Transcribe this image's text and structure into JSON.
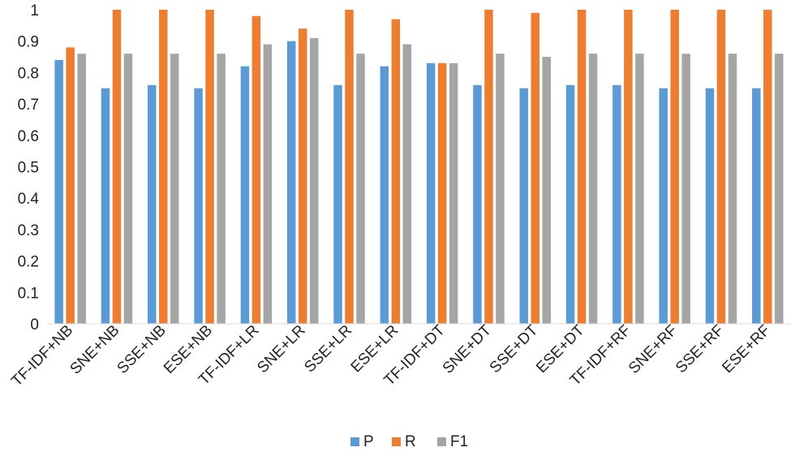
{
  "chart_data": {
    "type": "bar",
    "title": "",
    "xlabel": "",
    "ylabel": "",
    "ylim": [
      0,
      1
    ],
    "yticks": [
      "0",
      "0.1",
      "0.2",
      "0.3",
      "0.4",
      "0.5",
      "0.6",
      "0.7",
      "0.8",
      "0.9",
      "1"
    ],
    "grid": false,
    "legend_position": "bottom",
    "categories": [
      "TF-IDF+NB",
      "SNE+NB",
      "SSE+NB",
      "ESE+NB",
      "TF-IDF+LR",
      "SNE+LR",
      "SSE+LR",
      "ESE+LR",
      "TF-IDF+DT",
      "SNE+DT",
      "SSE+DT",
      "ESE+DT",
      "TF-IDF+RF",
      "SNE+RF",
      "SSE+RF",
      "ESE+RF"
    ],
    "series": [
      {
        "name": "P",
        "color": "#5B9BD5",
        "values": [
          0.84,
          0.75,
          0.76,
          0.75,
          0.82,
          0.9,
          0.76,
          0.82,
          0.83,
          0.76,
          0.75,
          0.76,
          0.76,
          0.75,
          0.75,
          0.75
        ]
      },
      {
        "name": "R",
        "color": "#ED7D31",
        "values": [
          0.88,
          1.0,
          1.0,
          1.0,
          0.98,
          0.94,
          1.0,
          0.97,
          0.83,
          1.0,
          0.99,
          1.0,
          1.0,
          1.0,
          1.0,
          1.0
        ]
      },
      {
        "name": "F1",
        "color": "#A5A5A5",
        "values": [
          0.86,
          0.86,
          0.86,
          0.86,
          0.89,
          0.91,
          0.86,
          0.89,
          0.83,
          0.86,
          0.85,
          0.86,
          0.86,
          0.86,
          0.86,
          0.86
        ]
      }
    ]
  }
}
